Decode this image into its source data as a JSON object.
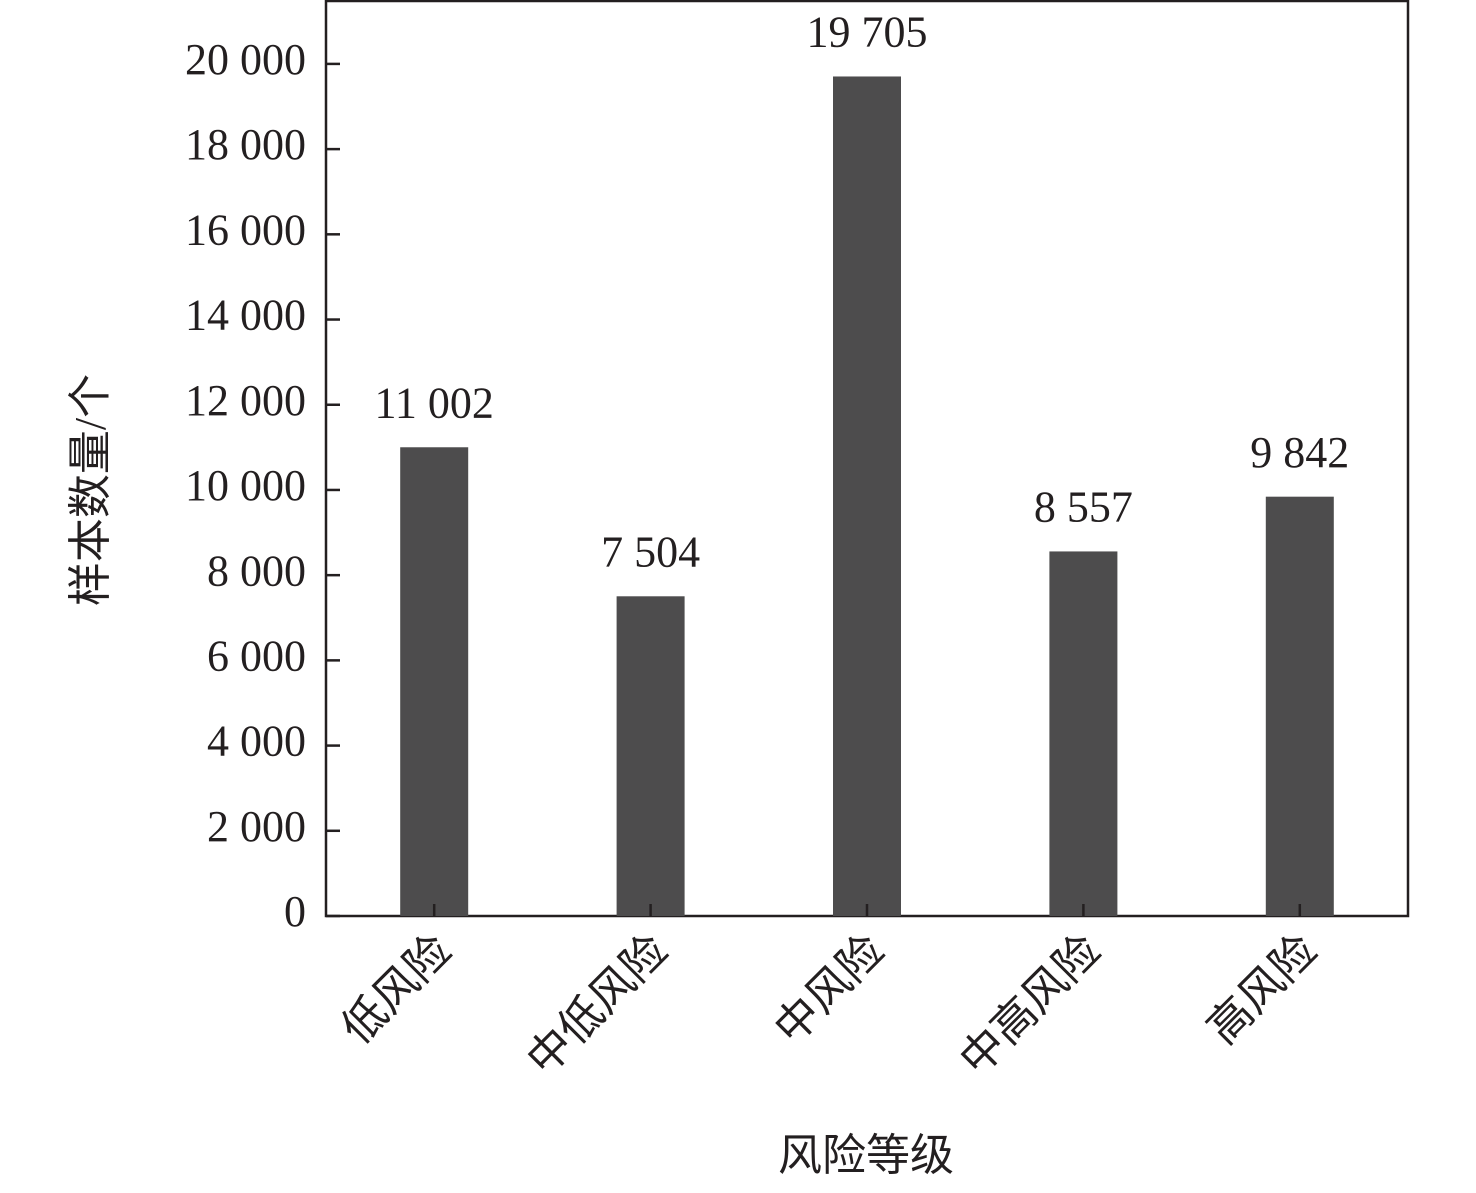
{
  "chart_data": {
    "type": "bar",
    "categories": [
      "低风险",
      "中低风险",
      "中风险",
      "中高风险",
      "高风险"
    ],
    "values": [
      11002,
      7504,
      19705,
      8557,
      9842
    ],
    "value_labels": [
      "11 002",
      "7 504",
      "19 705",
      "8 557",
      "9 842"
    ],
    "color": "#4d4c4d",
    "x_label": "风险等级",
    "y_label": "样本数量/个",
    "ylim": [
      0,
      21500
    ],
    "yticks": [
      0,
      {
        "value": 2000,
        "label": "2 000"
      },
      {
        "value": 4000,
        "label": "4 000"
      },
      {
        "value": 6000,
        "label": "6 000"
      },
      {
        "value": 8000,
        "label": "8 000"
      },
      {
        "value": 10000,
        "label": "10 000"
      },
      {
        "value": 12000,
        "label": "12 000"
      },
      {
        "value": 14000,
        "label": "14 000"
      },
      {
        "value": 16000,
        "label": "16 000"
      },
      {
        "value": 18000,
        "label": "18 000"
      },
      {
        "value": 20000,
        "label": "20 000"
      }
    ],
    "grid": false
  }
}
